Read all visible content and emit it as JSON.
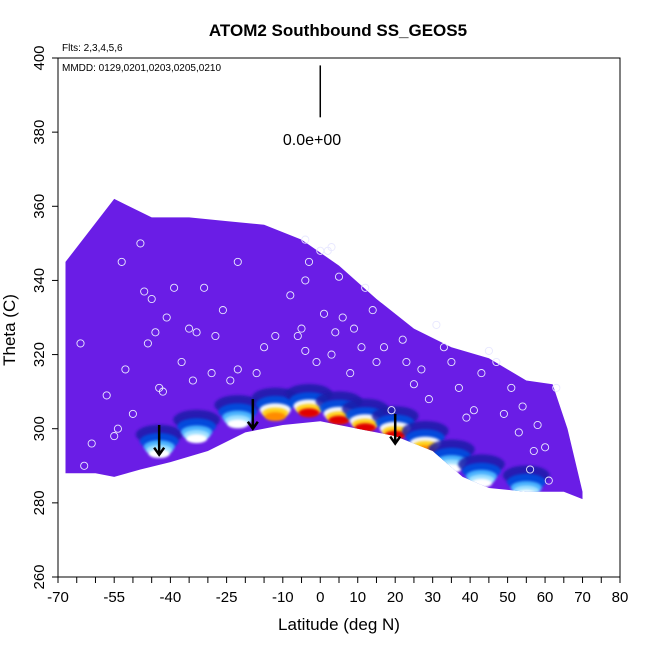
{
  "chart_data": {
    "type": "heatmap",
    "title": "ATOM2 Southbound SS_GEOS5",
    "annotations": {
      "flights": "Flts: 2,3,4,5,6",
      "dates": "MMDD: 0129,0201,0203,0205,0210",
      "scale_label": "0.0e+00"
    },
    "xlabel": "Latitude (deg N)",
    "ylabel": "Theta (C)",
    "xlim": [
      -70,
      80
    ],
    "ylim": [
      260,
      400
    ],
    "xticks": [
      -70,
      -55,
      -40,
      -25,
      -10,
      0,
      10,
      20,
      30,
      40,
      50,
      60,
      70,
      80
    ],
    "yticks": [
      260,
      280,
      300,
      320,
      340,
      360,
      380,
      400
    ],
    "field_envelope": {
      "top": [
        [
          -68,
          345
        ],
        [
          -55,
          362
        ],
        [
          -45,
          357
        ],
        [
          -35,
          357
        ],
        [
          -25,
          356
        ],
        [
          -15,
          355
        ],
        [
          -5,
          351
        ],
        [
          5,
          344
        ],
        [
          15,
          335
        ],
        [
          25,
          327
        ],
        [
          35,
          322
        ],
        [
          45,
          319
        ],
        [
          55,
          313
        ],
        [
          62,
          312
        ],
        [
          66,
          300
        ],
        [
          70,
          283
        ]
      ],
      "bottom": [
        [
          70,
          281
        ],
        [
          65,
          283
        ],
        [
          55,
          283
        ],
        [
          45,
          284
        ],
        [
          38,
          287
        ],
        [
          30,
          294
        ],
        [
          20,
          298
        ],
        [
          10,
          300
        ],
        [
          0,
          302
        ],
        [
          -10,
          301
        ],
        [
          -20,
          299
        ],
        [
          -30,
          294
        ],
        [
          -40,
          291
        ],
        [
          -48,
          289
        ],
        [
          -55,
          287
        ],
        [
          -60,
          288
        ],
        [
          -68,
          288
        ]
      ]
    },
    "enhanced_band": [
      {
        "lat": -43,
        "theta": 293,
        "level": 0.1
      },
      {
        "lat": -33,
        "theta": 297,
        "level": 0.2
      },
      {
        "lat": -22,
        "theta": 301,
        "level": 0.35
      },
      {
        "lat": -12,
        "theta": 303,
        "level": 0.55
      },
      {
        "lat": -3,
        "theta": 304,
        "level": 0.9
      },
      {
        "lat": 5,
        "theta": 302,
        "level": 1.0
      },
      {
        "lat": 12,
        "theta": 300,
        "level": 0.95
      },
      {
        "lat": 20,
        "theta": 298,
        "level": 0.95
      },
      {
        "lat": 28,
        "theta": 294,
        "level": 0.75
      },
      {
        "lat": 35,
        "theta": 289,
        "level": 0.4
      },
      {
        "lat": 43,
        "theta": 285,
        "level": 0.2
      },
      {
        "lat": 55,
        "theta": 282,
        "level": 0.1
      }
    ],
    "arrows": [
      {
        "lat": -43,
        "theta": 296
      },
      {
        "lat": -18,
        "theta": 303
      },
      {
        "lat": 20,
        "theta": 299
      }
    ],
    "scale_bar": {
      "lat": 0,
      "theta_top": 398,
      "theta_bottom": 384
    },
    "flight_points": [
      [
        -64,
        323
      ],
      [
        -61,
        296
      ],
      [
        -63,
        290
      ],
      [
        -57,
        309
      ],
      [
        -55,
        298
      ],
      [
        -54,
        300
      ],
      [
        -53,
        345
      ],
      [
        -52,
        316
      ],
      [
        -50,
        304
      ],
      [
        -48,
        350
      ],
      [
        -47,
        337
      ],
      [
        -46,
        323
      ],
      [
        -45,
        335
      ],
      [
        -44,
        326
      ],
      [
        -43,
        311
      ],
      [
        -42,
        310
      ],
      [
        -41,
        330
      ],
      [
        -39,
        338
      ],
      [
        -37,
        318
      ],
      [
        -35,
        327
      ],
      [
        -34,
        313
      ],
      [
        -33,
        326
      ],
      [
        -31,
        338
      ],
      [
        -29,
        315
      ],
      [
        -28,
        325
      ],
      [
        -26,
        332
      ],
      [
        -24,
        313
      ],
      [
        -22,
        345
      ],
      [
        -17,
        315
      ],
      [
        -15,
        322
      ],
      [
        -12,
        325
      ],
      [
        -8,
        336
      ],
      [
        -6,
        325
      ],
      [
        -5,
        327
      ],
      [
        -4,
        321
      ],
      [
        -4,
        340
      ],
      [
        -3,
        345
      ],
      [
        -1,
        318
      ],
      [
        1,
        331
      ],
      [
        2,
        348
      ],
      [
        3,
        320
      ],
      [
        -4,
        351
      ],
      [
        0,
        348
      ],
      [
        3,
        349
      ],
      [
        5,
        341
      ],
      [
        6,
        330
      ],
      [
        8,
        315
      ],
      [
        9,
        327
      ],
      [
        11,
        322
      ],
      [
        12,
        338
      ],
      [
        14,
        332
      ],
      [
        15,
        318
      ],
      [
        17,
        322
      ],
      [
        19,
        305
      ],
      [
        22,
        324
      ],
      [
        23,
        318
      ],
      [
        25,
        312
      ],
      [
        27,
        316
      ],
      [
        29,
        308
      ],
      [
        31,
        328
      ],
      [
        33,
        322
      ],
      [
        35,
        318
      ],
      [
        37,
        311
      ],
      [
        39,
        303
      ],
      [
        41,
        305
      ],
      [
        43,
        315
      ],
      [
        45,
        321
      ],
      [
        47,
        318
      ],
      [
        49,
        304
      ],
      [
        51,
        311
      ],
      [
        53,
        299
      ],
      [
        54,
        306
      ],
      [
        56,
        289
      ],
      [
        57,
        294
      ],
      [
        58,
        301
      ],
      [
        60,
        295
      ],
      [
        61,
        286
      ],
      [
        63,
        311
      ],
      [
        -22,
        316
      ],
      [
        4,
        326
      ]
    ]
  }
}
